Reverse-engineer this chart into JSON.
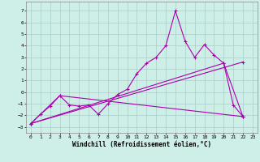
{
  "xlabel": "Windchill (Refroidissement éolien,°C)",
  "bg_color": "#ceeee8",
  "grid_color": "#aacfc8",
  "line_color": "#aa00aa",
  "xlim": [
    -0.5,
    23.5
  ],
  "ylim": [
    -3.5,
    7.8
  ],
  "xticks": [
    0,
    1,
    2,
    3,
    4,
    5,
    6,
    7,
    8,
    9,
    10,
    11,
    12,
    13,
    14,
    15,
    16,
    17,
    18,
    19,
    20,
    21,
    22,
    23
  ],
  "yticks": [
    -3,
    -2,
    -1,
    0,
    1,
    2,
    3,
    4,
    5,
    6,
    7
  ],
  "series1": [
    [
      0,
      -2.7
    ],
    [
      1,
      -1.9
    ],
    [
      2,
      -1.2
    ],
    [
      3,
      -0.3
    ],
    [
      4,
      -1.1
    ],
    [
      5,
      -1.2
    ],
    [
      6,
      -1.1
    ],
    [
      7,
      -1.9
    ],
    [
      8,
      -1.0
    ],
    [
      9,
      -0.2
    ],
    [
      10,
      0.25
    ],
    [
      11,
      1.6
    ],
    [
      12,
      2.5
    ],
    [
      13,
      3.0
    ],
    [
      14,
      4.0
    ],
    [
      15,
      7.0
    ],
    [
      16,
      4.4
    ],
    [
      17,
      3.0
    ],
    [
      18,
      4.1
    ],
    [
      19,
      3.2
    ],
    [
      20,
      2.5
    ],
    [
      21,
      -1.1
    ],
    [
      22,
      -2.1
    ]
  ],
  "series2": [
    [
      0,
      -2.7
    ],
    [
      3,
      -0.3
    ],
    [
      22,
      -2.1
    ]
  ],
  "series3": [
    [
      0,
      -2.7
    ],
    [
      22,
      2.6
    ]
  ],
  "series4": [
    [
      0,
      -2.7
    ],
    [
      20,
      2.5
    ],
    [
      22,
      -2.1
    ]
  ]
}
